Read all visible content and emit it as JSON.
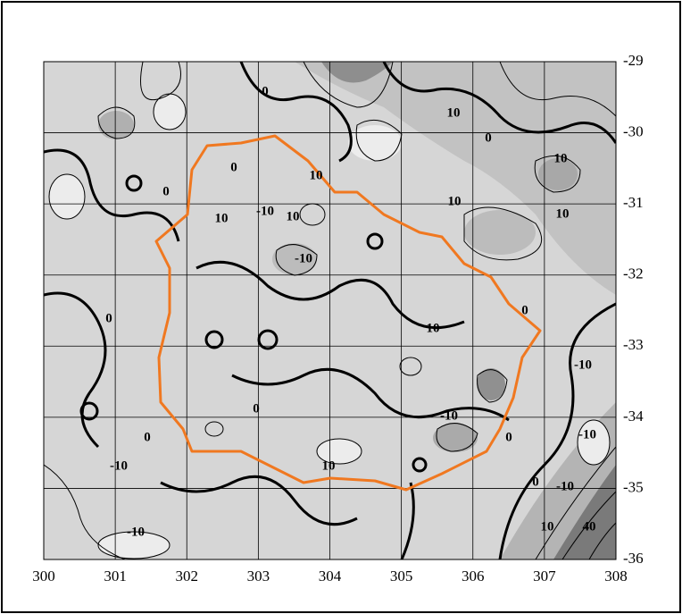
{
  "chart_data": {
    "type": "contour",
    "xlim": [
      300,
      308
    ],
    "ylim": [
      -36,
      -29
    ],
    "xticks": [
      300,
      301,
      302,
      303,
      304,
      305,
      306,
      307,
      308
    ],
    "yticks": [
      -29,
      -30,
      -31,
      -32,
      -33,
      -34,
      -35,
      -36
    ],
    "grid": true,
    "boundary_color": "#f07820",
    "contour_labels": [
      0,
      10,
      0,
      10,
      0,
      10,
      0,
      10,
      10,
      10,
      -10,
      10,
      -10,
      0,
      0,
      10,
      -10,
      0,
      -10,
      0,
      -10,
      0,
      -10,
      10,
      0,
      -10,
      10,
      40,
      -10
    ]
  }
}
